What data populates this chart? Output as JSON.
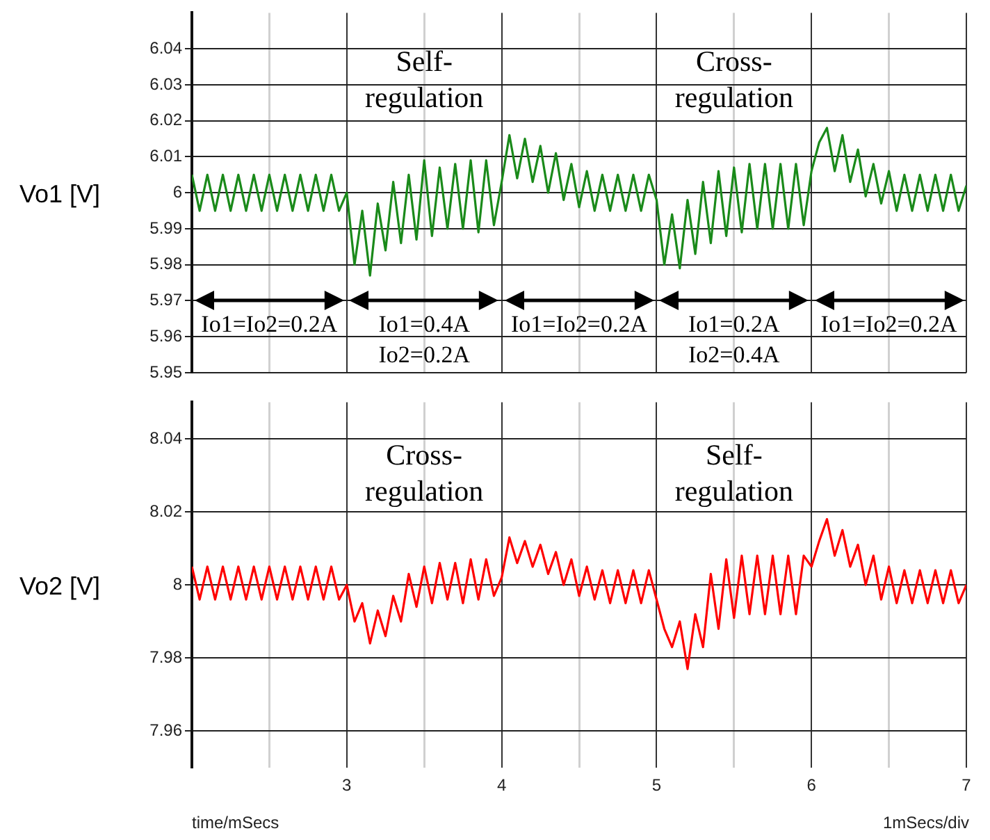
{
  "chart_data": [
    {
      "type": "line",
      "ylabel": "Vo1 [V]",
      "xlim": [
        2,
        7
      ],
      "ylim": [
        5.95,
        6.05
      ],
      "xticks": [
        {
          "value": 2.5,
          "label": null
        },
        3,
        {
          "value": 3.5,
          "label": null
        },
        4,
        {
          "value": 4.5,
          "label": null
        },
        5,
        {
          "value": 5.5,
          "label": null
        },
        6,
        {
          "value": 6.5,
          "label": null
        },
        7
      ],
      "yticks": [
        5.95,
        5.96,
        5.97,
        5.98,
        5.99,
        6,
        6.01,
        6.02,
        6.03,
        6.04
      ],
      "tick_labels": "y",
      "grid": true,
      "legend": false,
      "marker": "none",
      "line_style": "solid",
      "x": [
        2,
        2.05,
        2.1,
        2.15,
        2.2,
        2.25,
        2.3,
        2.35,
        2.4,
        2.45,
        2.5,
        2.55,
        2.6,
        2.65,
        2.7,
        2.75,
        2.8,
        2.85,
        2.9,
        2.95,
        3,
        3.05,
        3.1,
        3.15,
        3.2,
        3.25,
        3.3,
        3.35,
        3.4,
        3.45,
        3.5,
        3.55,
        3.6,
        3.65,
        3.7,
        3.75,
        3.8,
        3.85,
        3.9,
        3.95,
        4,
        4.05,
        4.1,
        4.15,
        4.2,
        4.25,
        4.3,
        4.35,
        4.4,
        4.45,
        4.5,
        4.55,
        4.6,
        4.65,
        4.7,
        4.75,
        4.8,
        4.85,
        4.9,
        4.95,
        5,
        5.05,
        5.1,
        5.15,
        5.2,
        5.25,
        5.3,
        5.35,
        5.4,
        5.45,
        5.5,
        5.55,
        5.6,
        5.65,
        5.7,
        5.75,
        5.8,
        5.85,
        5.9,
        5.95,
        6,
        6.05,
        6.1,
        6.15,
        6.2,
        6.25,
        6.3,
        6.35,
        6.4,
        6.45,
        6.5,
        6.55,
        6.6,
        6.65,
        6.7,
        6.75,
        6.8,
        6.85,
        6.9,
        6.95,
        7
      ],
      "series": [
        {
          "color": "#1a8a1a",
          "values": [
            6.005,
            5.995,
            6.005,
            5.995,
            6.005,
            5.995,
            6.005,
            5.995,
            6.005,
            5.995,
            6.005,
            5.995,
            6.005,
            5.995,
            6.005,
            5.995,
            6.005,
            5.995,
            6.005,
            5.995,
            6.0,
            5.98,
            5.995,
            5.977,
            5.997,
            5.984,
            6.003,
            5.986,
            6.005,
            5.987,
            6.009,
            5.988,
            6.007,
            5.99,
            6.008,
            5.99,
            6.009,
            5.989,
            6.009,
            5.991,
            6.003,
            6.016,
            6.004,
            6.015,
            6.003,
            6.013,
            6.0,
            6.011,
            5.998,
            6.008,
            5.996,
            6.006,
            5.995,
            6.005,
            5.995,
            6.005,
            5.995,
            6.005,
            5.995,
            6.005,
            5.998,
            5.98,
            5.994,
            5.979,
            5.998,
            5.983,
            6.003,
            5.986,
            6.006,
            5.988,
            6.007,
            5.989,
            6.008,
            5.99,
            6.008,
            5.99,
            6.008,
            5.99,
            6.008,
            5.991,
            6.006,
            6.014,
            6.018,
            6.006,
            6.016,
            6.003,
            6.012,
            5.999,
            6.008,
            5.997,
            6.006,
            5.995,
            6.005,
            5.995,
            6.005,
            5.995,
            6.005,
            5.995,
            6.005,
            5.995,
            6.002
          ]
        }
      ],
      "annotations": [
        "Self-regulation",
        "Cross-regulation",
        "Io1=Io2=0.2A",
        "Io1=0.4A",
        "Io2=0.2A",
        "Io1=Io2=0.2A",
        "Io1=0.2A",
        "Io2=0.4A",
        "Io1=Io2=0.2A"
      ]
    },
    {
      "type": "line",
      "ylabel": "Vo2 [V]",
      "xlabel": "time/mSecs",
      "xlim": [
        2,
        7
      ],
      "ylim": [
        7.95,
        8.05
      ],
      "xticks": [
        {
          "value": 2.5,
          "label": null
        },
        3,
        {
          "value": 3.5,
          "label": null
        },
        4,
        {
          "value": 4.5,
          "label": null
        },
        5,
        {
          "value": 5.5,
          "label": null
        },
        6,
        {
          "value": 6.5,
          "label": null
        },
        7
      ],
      "yticks": [
        7.96,
        7.98,
        8,
        8.02,
        8.04
      ],
      "grid": true,
      "legend": false,
      "marker": "none",
      "line_style": "solid",
      "x": [
        2,
        2.05,
        2.1,
        2.15,
        2.2,
        2.25,
        2.3,
        2.35,
        2.4,
        2.45,
        2.5,
        2.55,
        2.6,
        2.65,
        2.7,
        2.75,
        2.8,
        2.85,
        2.9,
        2.95,
        3,
        3.05,
        3.1,
        3.15,
        3.2,
        3.25,
        3.3,
        3.35,
        3.4,
        3.45,
        3.5,
        3.55,
        3.6,
        3.65,
        3.7,
        3.75,
        3.8,
        3.85,
        3.9,
        3.95,
        4,
        4.05,
        4.1,
        4.15,
        4.2,
        4.25,
        4.3,
        4.35,
        4.4,
        4.45,
        4.5,
        4.55,
        4.6,
        4.65,
        4.7,
        4.75,
        4.8,
        4.85,
        4.9,
        4.95,
        5,
        5.05,
        5.1,
        5.15,
        5.2,
        5.25,
        5.3,
        5.35,
        5.4,
        5.45,
        5.5,
        5.55,
        5.6,
        5.65,
        5.7,
        5.75,
        5.8,
        5.85,
        5.9,
        5.95,
        6,
        6.05,
        6.1,
        6.15,
        6.2,
        6.25,
        6.3,
        6.35,
        6.4,
        6.45,
        6.5,
        6.55,
        6.6,
        6.65,
        6.7,
        6.75,
        6.8,
        6.85,
        6.9,
        6.95,
        7
      ],
      "series": [
        {
          "color": "#ff0000",
          "values": [
            8.005,
            7.996,
            8.005,
            7.996,
            8.005,
            7.996,
            8.005,
            7.996,
            8.005,
            7.996,
            8.005,
            7.996,
            8.005,
            7.996,
            8.005,
            7.996,
            8.005,
            7.996,
            8.005,
            7.996,
            8.0,
            7.99,
            7.995,
            7.984,
            7.993,
            7.986,
            7.997,
            7.99,
            8.003,
            7.994,
            8.005,
            7.995,
            8.006,
            7.996,
            8.006,
            7.995,
            8.007,
            7.996,
            8.007,
            7.997,
            8.002,
            8.013,
            8.006,
            8.012,
            8.005,
            8.011,
            8.003,
            8.009,
            8.0,
            8.007,
            7.997,
            8.005,
            7.996,
            8.004,
            7.995,
            8.004,
            7.995,
            8.004,
            7.995,
            8.004,
            7.996,
            7.988,
            7.983,
            7.99,
            7.977,
            7.992,
            7.983,
            8.003,
            7.988,
            8.007,
            7.991,
            8.008,
            7.992,
            8.008,
            7.992,
            8.008,
            7.992,
            8.008,
            7.992,
            8.008,
            8.005,
            8.012,
            8.018,
            8.008,
            8.015,
            8.005,
            8.011,
            8.0,
            8.008,
            7.996,
            8.005,
            7.995,
            8.004,
            7.995,
            8.004,
            7.995,
            8.004,
            7.995,
            8.004,
            7.995,
            8.0
          ]
        }
      ],
      "annotations": [
        "Cross-regulation",
        "Self-regulation",
        "1mSecs/div"
      ]
    }
  ]
}
